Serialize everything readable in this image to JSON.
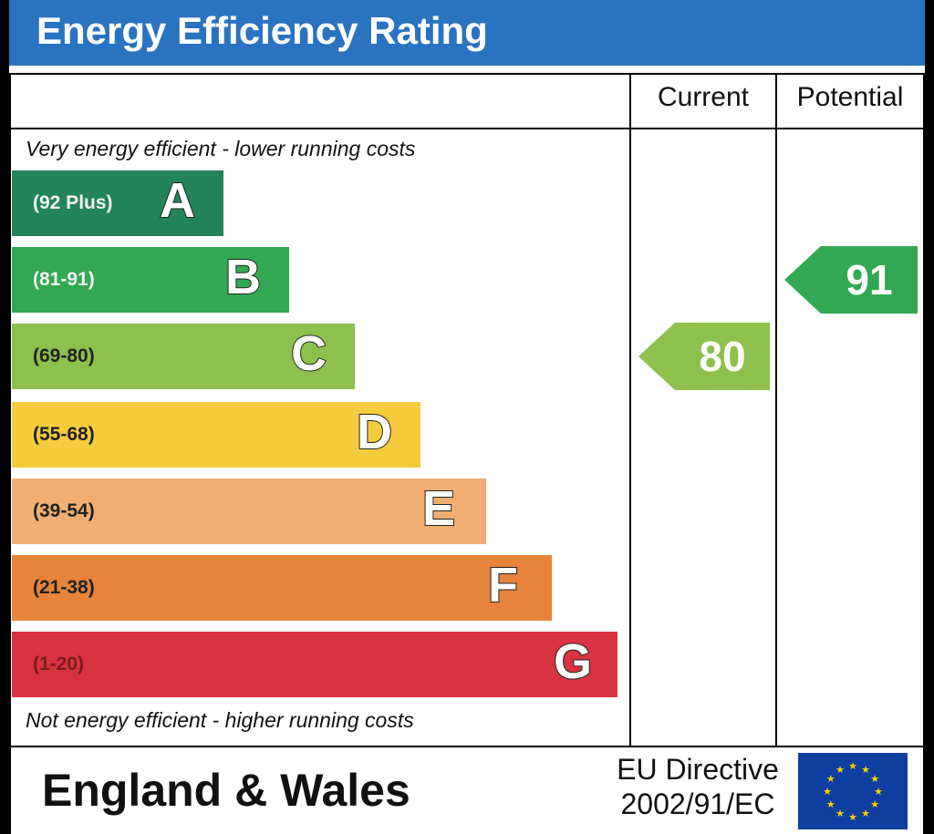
{
  "title": "Energy Efficiency Rating",
  "columns": {
    "current": "Current",
    "potential": "Potential"
  },
  "notes": {
    "top": "Very energy efficient - lower running costs",
    "bottom": "Not energy efficient - higher running costs"
  },
  "footer": {
    "region": "England & Wales",
    "directive_line1": "EU Directive",
    "directive_line2": "2002/91/EC"
  },
  "colors": {
    "title_bg": "#2a73c0",
    "A": "#23845a",
    "B": "#32a853",
    "C": "#8dc04c",
    "D": "#f4cc3e",
    "E": "#f0ae72",
    "F": "#e7833a",
    "G": "#d93240"
  },
  "chart_data": {
    "type": "bar",
    "categories": [
      "A",
      "B",
      "C",
      "D",
      "E",
      "F",
      "G"
    ],
    "ranges": [
      "(92 Plus)",
      "(81-91)",
      "(69-80)",
      "(55-68)",
      "(39-54)",
      "(21-38)",
      "(1-20)"
    ],
    "current": {
      "value": "80",
      "band": "C"
    },
    "potential": {
      "value": "91",
      "band": "B"
    }
  }
}
